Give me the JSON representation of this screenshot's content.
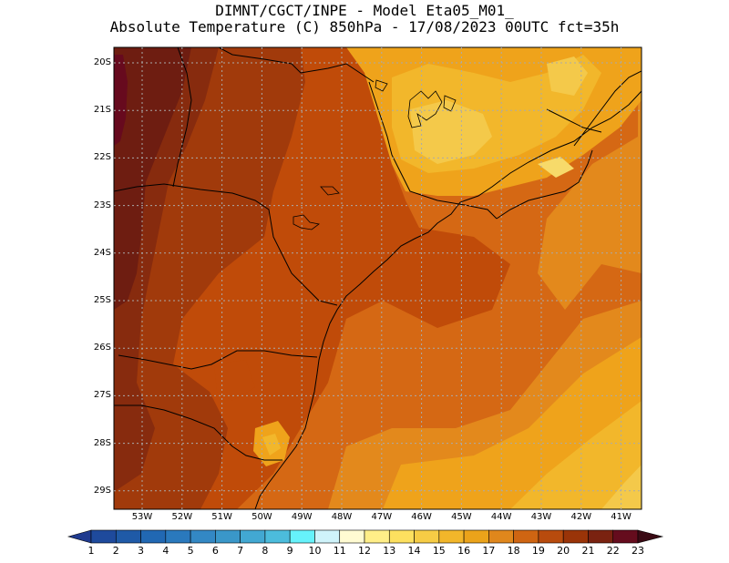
{
  "title_line1": "DIMNT/CGCT/INPE -  Model Eta05_M01_",
  "title_line2": "Absolute Temperature (C) 850hPa -  17/08/2023 00UTC fct=35h",
  "lat_labels": [
    "20S",
    "21S",
    "22S",
    "23S",
    "24S",
    "25S",
    "26S",
    "27S",
    "28S",
    "29S"
  ],
  "lon_labels": [
    "53W",
    "52W",
    "51W",
    "50W",
    "49W",
    "48W",
    "47W",
    "46W",
    "45W",
    "44W",
    "43W",
    "42W",
    "41W"
  ],
  "colorbar": {
    "labels": [
      "1",
      "2",
      "3",
      "4",
      "5",
      "6",
      "7",
      "8",
      "9",
      "10",
      "11",
      "12",
      "13",
      "14",
      "15",
      "16",
      "17",
      "18",
      "19",
      "20",
      "21",
      "22",
      "23"
    ],
    "colors": [
      "#1f3a8f",
      "#1e4a9c",
      "#1f5aa7",
      "#2168b3",
      "#2a79bd",
      "#3388c4",
      "#3a97c9",
      "#42a8d2",
      "#4cbcdc",
      "#66f2fb",
      "#cff3fa",
      "#fffbd2",
      "#ffee88",
      "#fde05f",
      "#f6cc45",
      "#f2b62a",
      "#eba31a",
      "#e0871c",
      "#cf6512",
      "#b84b0d",
      "#9a3408",
      "#7a2210",
      "#650c1d",
      "#3a0a14"
    ]
  },
  "fill_colors": {
    "c22": "#6e1d11",
    "c21": "#872b0e",
    "c20": "#a13a0b",
    "c19": "#c04b09",
    "c18": "#d56814",
    "c17": "#e3891c",
    "c16": "#efa31b",
    "c15": "#f2b72b",
    "c14": "#f4c94a",
    "c13": "#f7da6a",
    "c23": "#670a1e"
  }
}
